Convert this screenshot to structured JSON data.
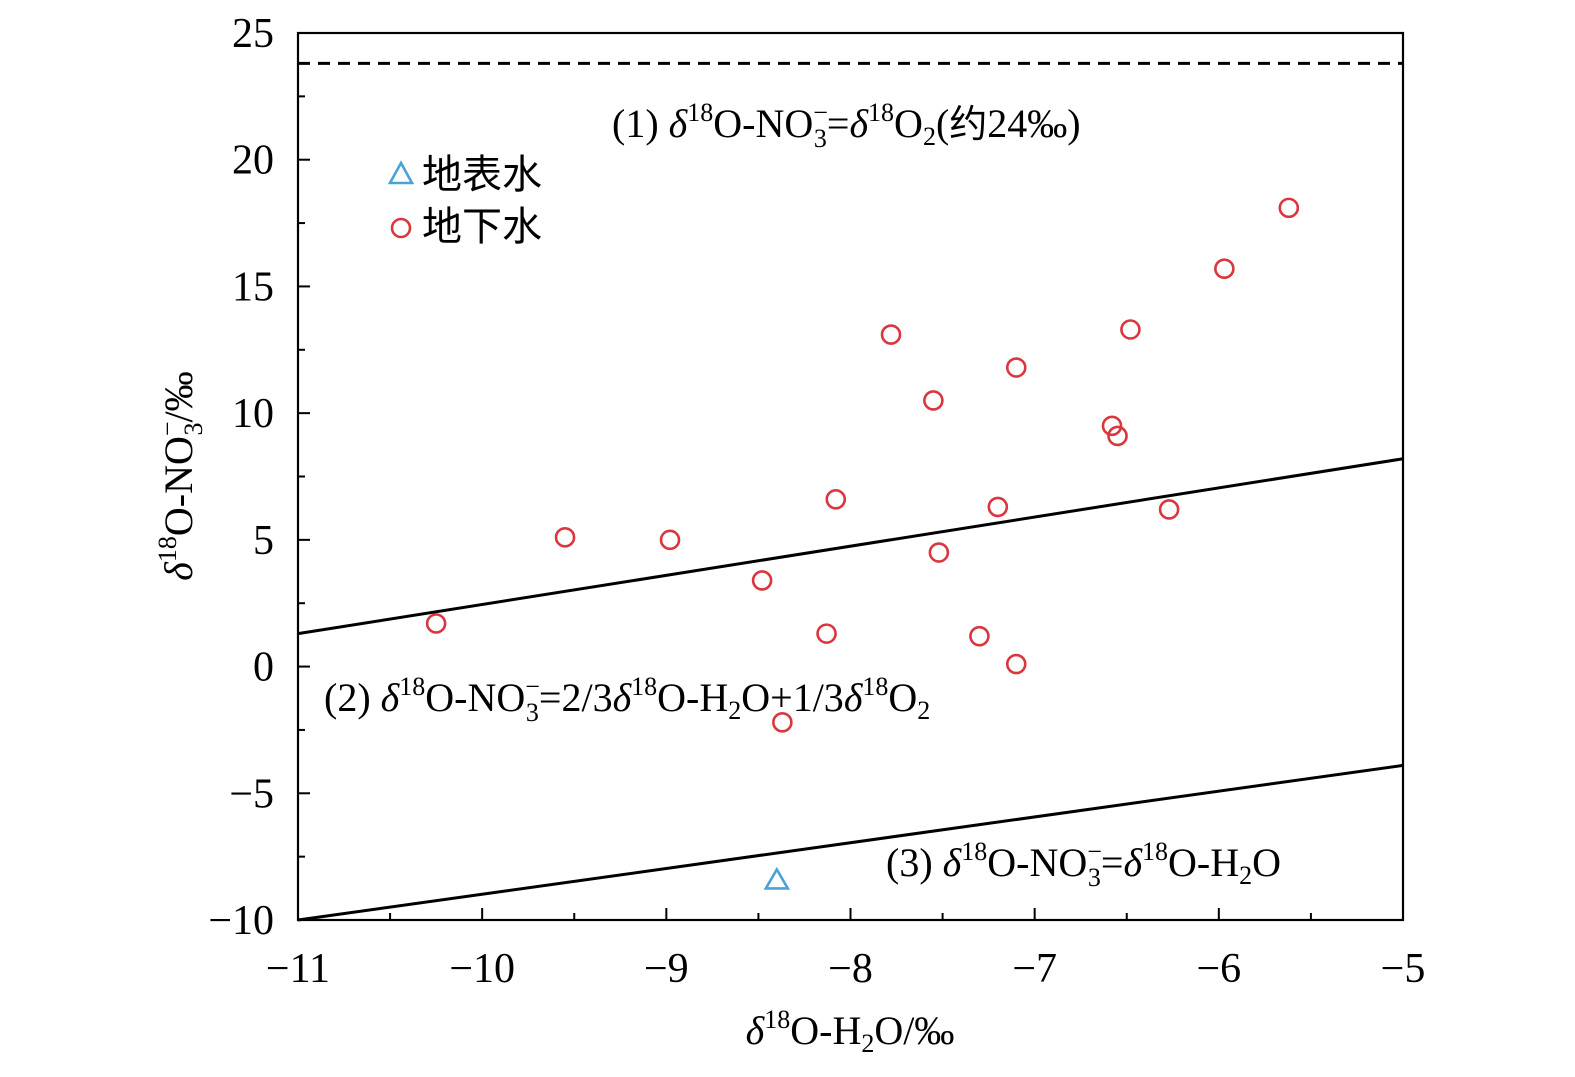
{
  "chart_data": {
    "type": "scatter",
    "title": "",
    "xlabel": "δ18O-H2O/‰",
    "ylabel": "δ18O-NO3−/‰",
    "xlim": [
      -11,
      -5
    ],
    "ylim": [
      -10,
      25
    ],
    "x_ticks": [
      -11,
      -10,
      -9,
      -8,
      -7,
      -6,
      -5
    ],
    "y_ticks": [
      -10,
      -5,
      0,
      5,
      10,
      15,
      20,
      25
    ],
    "x_tick_labels": [
      "−11",
      "−10",
      "−9",
      "−8",
      "−7",
      "−6",
      "−5"
    ],
    "y_tick_labels": [
      "−10",
      "−5",
      "0",
      "5",
      "10",
      "15",
      "20",
      "25"
    ],
    "grid": false,
    "legend_position": "top-left",
    "series": [
      {
        "name": "地表水",
        "marker": "triangle",
        "color": "#4aa3d8",
        "points": [
          [
            -8.4,
            -8.4
          ]
        ]
      },
      {
        "name": "地下水",
        "marker": "circle",
        "color": "#d9363e",
        "points": [
          [
            -10.25,
            1.7
          ],
          [
            -9.55,
            5.1
          ],
          [
            -8.98,
            5.0
          ],
          [
            -8.48,
            3.4
          ],
          [
            -8.37,
            -2.2
          ],
          [
            -8.13,
            1.3
          ],
          [
            -8.08,
            6.6
          ],
          [
            -7.78,
            13.1
          ],
          [
            -7.55,
            10.5
          ],
          [
            -7.52,
            4.5
          ],
          [
            -7.3,
            1.2
          ],
          [
            -7.2,
            6.3
          ],
          [
            -7.1,
            11.8
          ],
          [
            -7.1,
            0.1
          ],
          [
            -6.58,
            9.5
          ],
          [
            -6.55,
            9.1
          ],
          [
            -6.48,
            13.3
          ],
          [
            -6.27,
            6.2
          ],
          [
            -5.97,
            15.7
          ],
          [
            -5.62,
            18.1
          ]
        ]
      }
    ],
    "reference_lines": [
      {
        "label_prefix": "(1) δ",
        "label": "(1) δ18O-NO3−=δ18O2(约24‰)",
        "style": "dashed",
        "points": [
          [
            -11,
            23.8
          ],
          [
            -5,
            23.8
          ]
        ]
      },
      {
        "label": "(2) δ18O-NO3−=2/3δ18O-H2O+1/3δ18O2",
        "style": "solid",
        "points": [
          [
            -11,
            1.3
          ],
          [
            -5,
            8.2
          ]
        ]
      },
      {
        "label": "(3) δ18O-NO3−=δ18O-H2O",
        "style": "solid",
        "points": [
          [
            -11,
            -10
          ],
          [
            -5,
            -3.9
          ]
        ]
      }
    ]
  }
}
